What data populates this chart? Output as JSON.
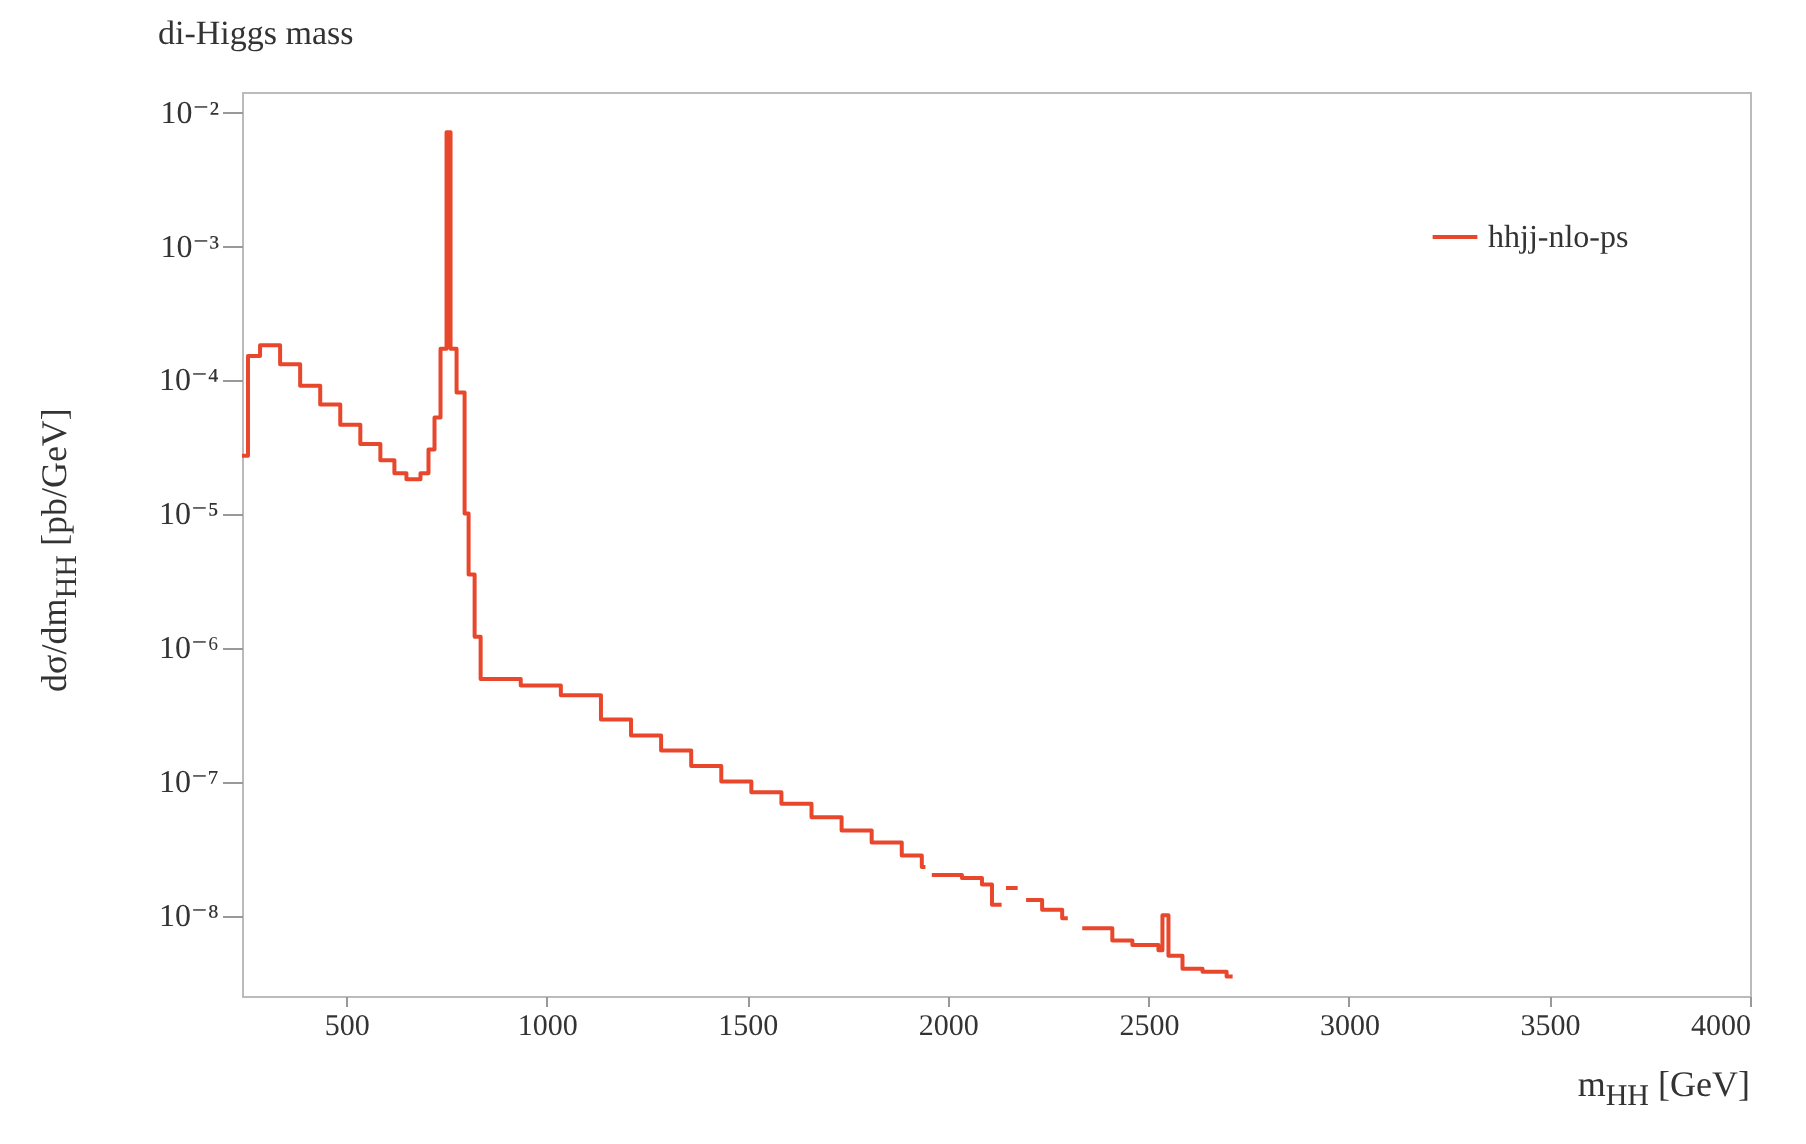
{
  "chart_data": {
    "type": "step",
    "title": "di-Higgs mass",
    "xlabel": "m$_{HH}$ [GeV]",
    "ylabel": "dσ/dm$_{HH}$ [pb/GeV]",
    "log": "y",
    "legend": "top right",
    "grid": false,
    "xlim": [
      240,
      4000
    ],
    "xticks": [
      500,
      1000,
      1500,
      2000,
      2500,
      3000,
      3500,
      4000
    ],
    "ylim": [
      2.5e-09,
      0.014
    ],
    "yticks": [
      {
        "value": 1e-08,
        "label": "10⁻⁸"
      },
      {
        "value": 1e-07,
        "label": "10⁻⁷"
      },
      {
        "value": 1e-06,
        "label": "10⁻⁶"
      },
      {
        "value": 1e-05,
        "label": "10⁻⁵"
      },
      {
        "value": 0.0001,
        "label": "10⁻⁴"
      },
      {
        "value": 0.001,
        "label": "10⁻³"
      },
      {
        "value": 0.01,
        "label": "10⁻²"
      }
    ],
    "series": [
      {
        "name": "hhjj-nlo-ps",
        "color": "#e8472c",
        "x": [
          240,
          255,
          285,
          335,
          385,
          435,
          485,
          535,
          585,
          620,
          650,
          685,
          705,
          720,
          735,
          750,
          760,
          775,
          795,
          805,
          820,
          835,
          935,
          1035,
          1135,
          1210,
          1285,
          1360,
          1435,
          1510,
          1585,
          1660,
          1735,
          1810,
          1885,
          1935,
          1944,
          1945,
          1960,
          2035,
          2085,
          2110,
          2134,
          2135,
          2145,
          2174,
          2175,
          2195,
          2235,
          2285,
          2299,
          2300,
          2335,
          2410,
          2460,
          2525,
          2535,
          2550,
          2585,
          2635,
          2695,
          2710
        ],
        "values": [
          2.7e-05,
          0.00015,
          0.00018,
          0.00013,
          9e-05,
          6.5e-05,
          4.6e-05,
          3.3e-05,
          2.5e-05,
          2e-05,
          1.8e-05,
          2e-05,
          3e-05,
          5.2e-05,
          0.00017,
          0.007,
          0.00017,
          8e-05,
          1e-05,
          3.5e-06,
          1.2e-06,
          5.8e-07,
          5.2e-07,
          4.4e-07,
          2.9e-07,
          2.2e-07,
          1.7e-07,
          1.3e-07,
          1e-07,
          8.3e-08,
          6.8e-08,
          5.4e-08,
          4.3e-08,
          3.5e-08,
          2.8e-08,
          2.3e-08,
          2.3e-08,
          null,
          2e-08,
          1.9e-08,
          1.7e-08,
          1.2e-08,
          1.2e-08,
          null,
          1.6e-08,
          1.6e-08,
          null,
          1.3e-08,
          1.1e-08,
          9.5e-09,
          9.5e-09,
          null,
          8e-09,
          6.5e-09,
          6e-09,
          5.5e-09,
          1e-08,
          5e-09,
          4e-09,
          3.8e-09,
          3.5e-09,
          3.5e-09
        ]
      }
    ]
  }
}
